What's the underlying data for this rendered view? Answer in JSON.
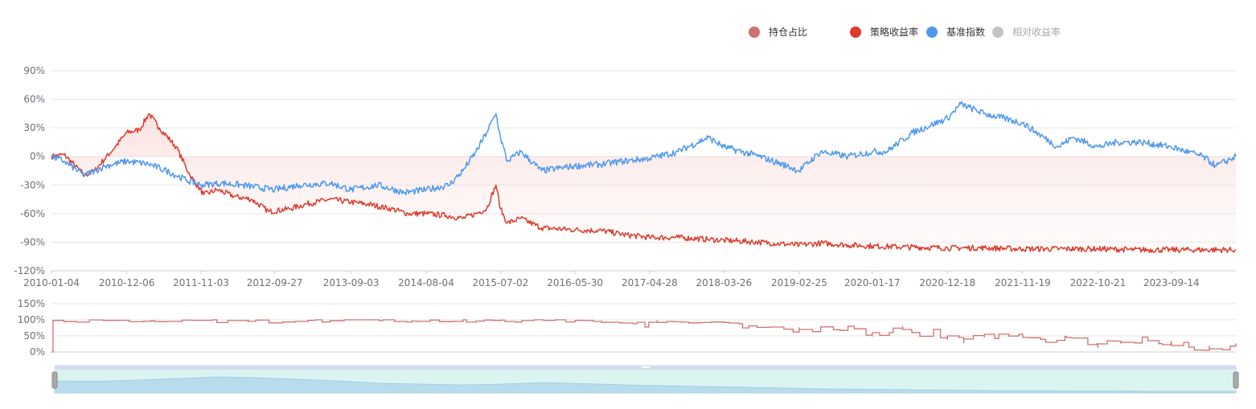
{
  "legend": [
    {
      "label": "持仓占比",
      "color": "#d07070",
      "active": true
    },
    {
      "label": "策略收益率",
      "color": "#dd3a2d",
      "active": true
    },
    {
      "label": "基准指数",
      "color": "#4f98ee",
      "active": true
    },
    {
      "label": "相对收益率",
      "color": "#c4c4c4",
      "active": false
    }
  ],
  "chart_data": [
    {
      "type": "line",
      "name": "returns",
      "x_ticks": [
        "2010-01-04",
        "2010-12-06",
        "2011-11-03",
        "2012-09-27",
        "2013-09-03",
        "2014-08-04",
        "2015-07-02",
        "2016-05-30",
        "2017-04-28",
        "2018-03-26",
        "2019-02-25",
        "2020-01-17",
        "2020-12-18",
        "2021-11-19",
        "2022-10-21",
        "2023-09-14"
      ],
      "xlim": [
        "2010-01-04",
        "2024-06-28"
      ],
      "y_ticks": [
        "90%",
        "60%",
        "30%",
        "0%",
        "-30%",
        "-60%",
        "-90%",
        "-120%"
      ],
      "ylim": [
        -120,
        90
      ],
      "series": [
        {
          "name": "策略收益率",
          "color": "#dd3a2d",
          "area": true,
          "x": [
            "2010-01-04",
            "2010-03-01",
            "2010-06-01",
            "2010-07-15",
            "2010-10-15",
            "2010-12-06",
            "2011-02-01",
            "2011-03-15",
            "2011-05-01",
            "2011-07-15",
            "2011-09-15",
            "2011-11-15",
            "2012-01-15",
            "2012-04-01",
            "2012-06-15",
            "2012-09-01",
            "2012-12-01",
            "2013-02-15",
            "2013-06-01",
            "2013-09-03",
            "2013-11-15",
            "2014-03-01",
            "2014-05-15",
            "2014-08-04",
            "2014-11-01",
            "2015-01-15",
            "2015-03-15",
            "2015-05-01",
            "2015-06-12",
            "2015-07-02",
            "2015-08-01",
            "2015-10-01",
            "2016-01-01",
            "2016-05-30",
            "2016-10-01",
            "2017-01-01",
            "2017-04-28",
            "2017-09-01",
            "2018-01-15",
            "2018-03-26",
            "2018-09-01",
            "2019-02-25",
            "2019-06-01",
            "2019-10-01",
            "2020-01-17",
            "2020-06-01",
            "2020-12-18",
            "2021-06-01",
            "2021-11-19",
            "2022-05-01",
            "2022-10-21",
            "2023-04-01",
            "2023-09-14",
            "2024-06-28"
          ],
          "values": [
            0,
            2,
            -20,
            -15,
            10,
            25,
            28,
            45,
            30,
            10,
            -20,
            -40,
            -35,
            -42,
            -45,
            -58,
            -55,
            -50,
            -45,
            -48,
            -50,
            -55,
            -60,
            -60,
            -62,
            -65,
            -60,
            -55,
            -30,
            -55,
            -70,
            -65,
            -75,
            -77,
            -78,
            -82,
            -85,
            -85,
            -87,
            -88,
            -90,
            -93,
            -91,
            -93,
            -94,
            -95,
            -96,
            -96,
            -97,
            -97,
            -97,
            -98,
            -98,
            -98
          ]
        },
        {
          "name": "基准指数",
          "color": "#4f98ee",
          "area": false,
          "x": [
            "2010-01-04",
            "2010-03-01",
            "2010-06-01",
            "2010-09-01",
            "2010-12-06",
            "2011-03-15",
            "2011-06-01",
            "2011-09-01",
            "2011-11-03",
            "2012-02-01",
            "2012-05-01",
            "2012-09-27",
            "2013-01-15",
            "2013-06-01",
            "2013-09-03",
            "2014-01-01",
            "2014-05-01",
            "2014-08-04",
            "2014-11-15",
            "2015-01-15",
            "2015-03-15",
            "2015-05-01",
            "2015-06-12",
            "2015-07-02",
            "2015-08-01",
            "2015-10-01",
            "2016-01-01",
            "2016-05-30",
            "2016-10-01",
            "2017-01-01",
            "2017-04-28",
            "2017-09-01",
            "2018-01-15",
            "2018-03-26",
            "2018-09-01",
            "2019-01-01",
            "2019-02-25",
            "2019-06-01",
            "2019-10-01",
            "2020-01-17",
            "2020-03-20",
            "2020-07-15",
            "2020-12-18",
            "2021-02-15",
            "2021-06-01",
            "2021-11-19",
            "2022-04-25",
            "2022-07-01",
            "2022-10-21",
            "2023-01-15",
            "2023-05-01",
            "2023-09-14",
            "2024-02-01",
            "2024-04-01",
            "2024-06-28"
          ],
          "values": [
            0,
            -5,
            -20,
            -10,
            -5,
            -8,
            -15,
            -25,
            -30,
            -28,
            -30,
            -35,
            -30,
            -28,
            -35,
            -30,
            -38,
            -35,
            -30,
            -15,
            5,
            25,
            45,
            20,
            -5,
            5,
            -15,
            -10,
            -8,
            -5,
            -2,
            5,
            20,
            10,
            0,
            -10,
            -15,
            5,
            0,
            5,
            5,
            25,
            40,
            55,
            45,
            35,
            10,
            20,
            10,
            15,
            15,
            10,
            0,
            -10,
            0
          ]
        }
      ]
    },
    {
      "type": "line",
      "name": "position",
      "y_ticks": [
        "150%",
        "100%",
        "50%",
        "0%"
      ],
      "ylim": [
        0,
        150
      ],
      "series": [
        {
          "name": "持仓占比",
          "color": "#d07070",
          "x": [
            "2010-01-04",
            "2010-01-11",
            "2011-06-01",
            "2012-06-01",
            "2013-06-01",
            "2014-06-01",
            "2015-06-01",
            "2016-05-30",
            "2017-01-01",
            "2017-06-01",
            "2018-03-26",
            "2018-06-01",
            "2019-02-25",
            "2019-06-01",
            "2019-10-01",
            "2020-01-17",
            "2020-06-01",
            "2020-12-18",
            "2021-03-01",
            "2021-06-01",
            "2021-11-19",
            "2022-03-01",
            "2022-06-01",
            "2022-10-21",
            "2023-02-01",
            "2023-06-01",
            "2023-09-14",
            "2023-12-01",
            "2024-03-01",
            "2024-06-28"
          ],
          "values": [
            0,
            98,
            95,
            95,
            97,
            96,
            98,
            98,
            90,
            92,
            92,
            88,
            70,
            78,
            80,
            60,
            70,
            50,
            40,
            55,
            45,
            30,
            45,
            25,
            30,
            35,
            20,
            15,
            10,
            15
          ]
        }
      ]
    }
  ],
  "slider": {
    "preview_values": [
      2,
      1,
      4,
      8,
      12,
      10,
      6,
      2,
      -4,
      -6,
      -8,
      -6,
      -2,
      -5,
      -8,
      -10,
      -12,
      -14,
      -16,
      -18,
      -19,
      -20,
      -21,
      -22,
      -22,
      -23,
      -23,
      -24,
      -24,
      -24
    ]
  }
}
